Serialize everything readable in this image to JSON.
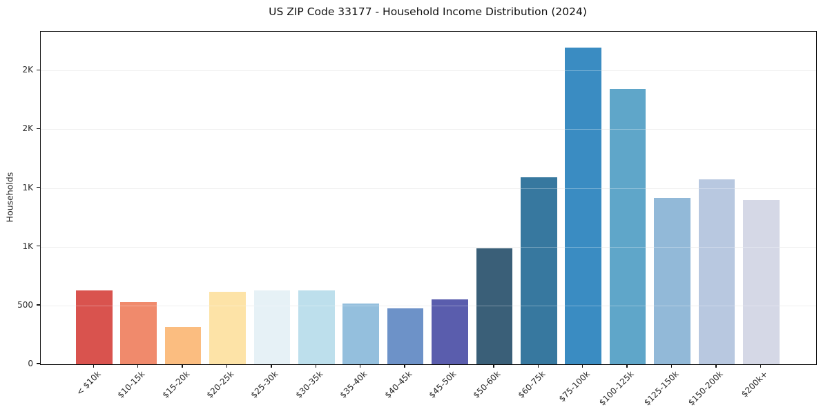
{
  "chart_data": {
    "type": "bar",
    "title": "US ZIP Code 33177 - Household Income Distribution (2024)",
    "xlabel": "",
    "ylabel": "Households",
    "categories": [
      "< $10k",
      "$10-15k",
      "$15-20k",
      "$20-25k",
      "$25-30k",
      "$30-35k",
      "$35-40k",
      "$40-45k",
      "$45-50k",
      "$50-60k",
      "$60-75k",
      "$75-100k",
      "$100-125k",
      "$125-150k",
      "$150-200k",
      "$200k+"
    ],
    "values": [
      630,
      530,
      320,
      615,
      630,
      630,
      515,
      475,
      550,
      985,
      1590,
      2695,
      2345,
      1415,
      1575,
      1400
    ],
    "bar_colors": [
      "#d9534e",
      "#f08a6c",
      "#fbbd80",
      "#fde3a7",
      "#e6f1f6",
      "#bddfec",
      "#94bfdd",
      "#6d92c8",
      "#5a5dad",
      "#3a5f78",
      "#37789f",
      "#3a8cc2",
      "#5fa6c9",
      "#92b9d8",
      "#b8c8e0",
      "#d5d8e6"
    ],
    "ylim": [
      0,
      2830
    ],
    "y_ticks": [
      {
        "value": 0,
        "label": "0"
      },
      {
        "value": 500,
        "label": "500"
      },
      {
        "value": 1000,
        "label": "1K"
      },
      {
        "value": 1500,
        "label": "1K"
      },
      {
        "value": 2000,
        "label": "2K"
      },
      {
        "value": 2500,
        "label": "2K"
      }
    ],
    "grid": "horizontal gridlines at y ticks, drawn over bars",
    "legend": "none",
    "gridline_color": "#e7e7e7",
    "frame_color": "#111111",
    "text_color": "#262626"
  }
}
